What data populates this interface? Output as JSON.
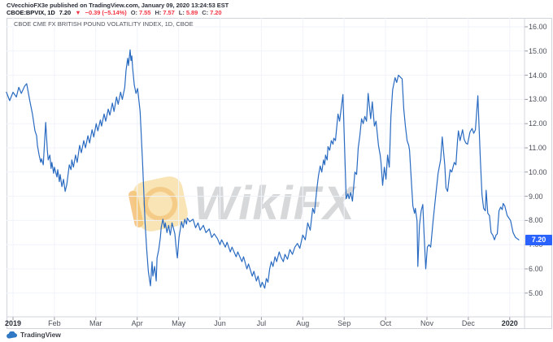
{
  "header": {
    "byline": "CVecchioFX3e published on TradingView.com, January 09, 2020 13:24:53 EST",
    "symbol": "CBOE:BPVIX, 1D",
    "last": "7.20",
    "direction_icon": "▼",
    "change": "−0.39 (−5.14%)",
    "o_label": "O:",
    "o_value": "7.55",
    "h_label": "H:",
    "h_value": "7.57",
    "l_label": "L:",
    "l_value": "5.89",
    "c_label": "C:",
    "c_value": "7.20"
  },
  "chart": {
    "legend_title": "CBOE CME FX BRITISH POUND VOLATILITY INDEX, 1D, CBOE",
    "watermark_text": "WikiFX",
    "price_badge": "7.20",
    "colors": {
      "line": "#2a6bc2",
      "badge_bg": "#2962ff",
      "badge_text": "#ffffff",
      "grid": "#f0f3fa",
      "axis_border": "#d1d4dc",
      "tick_dash": "#9598a1",
      "axis_text": "#4a4e59",
      "red": "#f23645",
      "tv_blue": "#3179c4"
    }
  },
  "attribution": {
    "label": "TradingView"
  },
  "chart_data": {
    "type": "line",
    "title": "CBOE CME FX BRITISH POUND VOLATILITY INDEX, 1D, CBOE",
    "xlabel": "",
    "ylabel": "",
    "grid": true,
    "legend_position": "none",
    "ylim": [
      4.0,
      16.4
    ],
    "last_price": 7.2,
    "y_ticks": [
      16,
      15,
      14,
      13,
      12,
      11,
      10,
      9,
      8,
      7,
      6,
      5
    ],
    "x_ticks": [
      {
        "label": "2019",
        "t": 0,
        "bold": true
      },
      {
        "label": "Feb",
        "t": 1
      },
      {
        "label": "Mar",
        "t": 2
      },
      {
        "label": "Apr",
        "t": 3
      },
      {
        "label": "May",
        "t": 4
      },
      {
        "label": "Jun",
        "t": 5
      },
      {
        "label": "Jul",
        "t": 6
      },
      {
        "label": "Aug",
        "t": 7
      },
      {
        "label": "Sep",
        "t": 8
      },
      {
        "label": "Oct",
        "t": 9
      },
      {
        "label": "Nov",
        "t": 10
      },
      {
        "label": "Dec",
        "t": 11
      },
      {
        "label": "2020",
        "t": 12,
        "bold": true
      }
    ],
    "x_unit": "months since 2019-01-01",
    "points": [
      [
        -0.16,
        13.3
      ],
      [
        -0.08,
        12.95
      ],
      [
        0,
        13.3
      ],
      [
        0.08,
        13.1
      ],
      [
        0.14,
        13.5
      ],
      [
        0.2,
        13.25
      ],
      [
        0.28,
        13.55
      ],
      [
        0.33,
        13.65
      ],
      [
        0.41,
        12.9
      ],
      [
        0.47,
        12.4
      ],
      [
        0.53,
        11.7
      ],
      [
        0.57,
        11.5
      ],
      [
        0.59,
        11.1
      ],
      [
        0.63,
        10.7
      ],
      [
        0.67,
        10.4
      ],
      [
        0.69,
        10.55
      ],
      [
        0.73,
        10.3
      ],
      [
        0.79,
        12.05
      ],
      [
        0.83,
        10.9
      ],
      [
        0.85,
        10.5
      ],
      [
        0.89,
        10.7
      ],
      [
        0.92,
        10.15
      ],
      [
        0.94,
        10.4
      ],
      [
        0.98,
        9.95
      ],
      [
        1.0,
        10.2
      ],
      [
        1.06,
        9.8
      ],
      [
        1.08,
        10.1
      ],
      [
        1.12,
        9.6
      ],
      [
        1.14,
        9.9
      ],
      [
        1.18,
        9.4
      ],
      [
        1.22,
        9.7
      ],
      [
        1.26,
        9.2
      ],
      [
        1.3,
        9.5
      ],
      [
        1.36,
        10.3
      ],
      [
        1.4,
        10.1
      ],
      [
        1.42,
        10.5
      ],
      [
        1.46,
        10.2
      ],
      [
        1.51,
        10.7
      ],
      [
        1.55,
        10.4
      ],
      [
        1.61,
        11.1
      ],
      [
        1.65,
        10.8
      ],
      [
        1.71,
        11.3
      ],
      [
        1.75,
        11.0
      ],
      [
        1.81,
        11.5
      ],
      [
        1.85,
        11.2
      ],
      [
        1.91,
        11.75
      ],
      [
        1.95,
        11.45
      ],
      [
        2.01,
        12.0
      ],
      [
        2.05,
        11.7
      ],
      [
        2.11,
        12.15
      ],
      [
        2.14,
        11.9
      ],
      [
        2.2,
        12.4
      ],
      [
        2.24,
        12.1
      ],
      [
        2.3,
        12.6
      ],
      [
        2.34,
        12.35
      ],
      [
        2.4,
        12.85
      ],
      [
        2.44,
        12.5
      ],
      [
        2.5,
        13.1
      ],
      [
        2.54,
        12.8
      ],
      [
        2.6,
        13.3
      ],
      [
        2.64,
        13.0
      ],
      [
        2.7,
        13.5
      ],
      [
        2.73,
        14.2
      ],
      [
        2.77,
        14.7
      ],
      [
        2.79,
        14.4
      ],
      [
        2.83,
        15.05
      ],
      [
        2.85,
        14.6
      ],
      [
        2.87,
        14.8
      ],
      [
        2.89,
        14.3
      ],
      [
        2.93,
        13.6
      ],
      [
        2.97,
        13.25
      ],
      [
        3.01,
        13.45
      ],
      [
        3.07,
        12.5
      ],
      [
        3.13,
        10.4
      ],
      [
        3.19,
        7.9
      ],
      [
        3.23,
        6.8
      ],
      [
        3.27,
        5.9
      ],
      [
        3.32,
        5.3
      ],
      [
        3.36,
        6.3
      ],
      [
        3.38,
        5.7
      ],
      [
        3.42,
        6.1
      ],
      [
        3.46,
        5.5
      ],
      [
        3.48,
        6.45
      ],
      [
        3.52,
        6.8
      ],
      [
        3.56,
        7.3
      ],
      [
        3.58,
        7.7
      ],
      [
        3.62,
        8.05
      ],
      [
        3.66,
        7.7
      ],
      [
        3.68,
        7.9
      ],
      [
        3.72,
        7.5
      ],
      [
        3.76,
        7.8
      ],
      [
        3.8,
        7.4
      ],
      [
        3.84,
        7.9
      ],
      [
        3.88,
        7.65
      ],
      [
        3.91,
        7.45
      ],
      [
        3.95,
        6.7
      ],
      [
        3.97,
        6.45
      ],
      [
        4.01,
        7.3
      ],
      [
        4.07,
        7.95
      ],
      [
        4.11,
        7.7
      ],
      [
        4.15,
        8.05
      ],
      [
        4.19,
        7.85
      ],
      [
        4.21,
        8.1
      ],
      [
        4.27,
        7.95
      ],
      [
        4.35,
        8.05
      ],
      [
        4.41,
        7.7
      ],
      [
        4.47,
        7.9
      ],
      [
        4.52,
        7.6
      ],
      [
        4.6,
        7.8
      ],
      [
        4.66,
        7.5
      ],
      [
        4.74,
        7.65
      ],
      [
        4.8,
        7.3
      ],
      [
        4.86,
        7.45
      ],
      [
        4.94,
        7.25
      ],
      [
        5.0,
        7.0
      ],
      [
        5.04,
        7.2
      ],
      [
        5.13,
        6.9
      ],
      [
        5.17,
        7.1
      ],
      [
        5.25,
        6.7
      ],
      [
        5.29,
        6.9
      ],
      [
        5.39,
        6.5
      ],
      [
        5.43,
        6.7
      ],
      [
        5.53,
        6.3
      ],
      [
        5.57,
        6.5
      ],
      [
        5.65,
        6.0
      ],
      [
        5.69,
        6.2
      ],
      [
        5.78,
        5.7
      ],
      [
        5.82,
        5.9
      ],
      [
        5.88,
        5.5
      ],
      [
        5.92,
        5.7
      ],
      [
        5.98,
        5.25
      ],
      [
        6.02,
        5.45
      ],
      [
        6.08,
        5.2
      ],
      [
        6.12,
        5.6
      ],
      [
        6.16,
        5.45
      ],
      [
        6.2,
        6.0
      ],
      [
        6.24,
        6.3
      ],
      [
        6.28,
        6.1
      ],
      [
        6.33,
        6.5
      ],
      [
        6.37,
        6.3
      ],
      [
        6.43,
        6.7
      ],
      [
        6.47,
        6.5
      ],
      [
        6.53,
        6.3
      ],
      [
        6.57,
        6.6
      ],
      [
        6.63,
        6.4
      ],
      [
        6.69,
        6.8
      ],
      [
        6.75,
        6.6
      ],
      [
        6.81,
        6.9
      ],
      [
        6.87,
        7.05
      ],
      [
        6.93,
        6.85
      ],
      [
        7.0,
        7.4
      ],
      [
        7.06,
        7.2
      ],
      [
        7.12,
        7.9
      ],
      [
        7.18,
        7.6
      ],
      [
        7.24,
        8.5
      ],
      [
        7.28,
        8.3
      ],
      [
        7.34,
        9.3
      ],
      [
        7.38,
        9.85
      ],
      [
        7.42,
        10.25
      ],
      [
        7.46,
        10.0
      ],
      [
        7.5,
        10.5
      ],
      [
        7.53,
        10.3
      ],
      [
        7.55,
        10.7
      ],
      [
        7.59,
        10.5
      ],
      [
        7.61,
        11.05
      ],
      [
        7.65,
        10.9
      ],
      [
        7.69,
        11.3
      ],
      [
        7.73,
        11.15
      ],
      [
        7.75,
        11.4
      ],
      [
        7.79,
        11.3
      ],
      [
        7.85,
        12.4
      ],
      [
        7.89,
        12.1
      ],
      [
        7.97,
        13.2
      ],
      [
        8.05,
        8.9
      ],
      [
        8.09,
        9.1
      ],
      [
        8.12,
        8.9
      ],
      [
        8.16,
        9.15
      ],
      [
        8.2,
        8.8
      ],
      [
        8.26,
        10.0
      ],
      [
        8.3,
        9.9
      ],
      [
        8.34,
        11.0
      ],
      [
        8.38,
        11.5
      ],
      [
        8.42,
        12.2
      ],
      [
        8.46,
        12.0
      ],
      [
        8.5,
        12.3
      ],
      [
        8.54,
        12.1
      ],
      [
        8.58,
        13.25
      ],
      [
        8.64,
        12.2
      ],
      [
        8.68,
        12.9
      ],
      [
        8.73,
        11.9
      ],
      [
        8.77,
        12.1
      ],
      [
        8.83,
        11.1
      ],
      [
        8.87,
        10.7
      ],
      [
        8.89,
        10.4
      ],
      [
        8.93,
        9.45
      ],
      [
        8.97,
        10.2
      ],
      [
        9.01,
        9.7
      ],
      [
        9.05,
        10.7
      ],
      [
        9.09,
        10.2
      ],
      [
        9.13,
        12.3
      ],
      [
        9.17,
        13.4
      ],
      [
        9.23,
        13.9
      ],
      [
        9.27,
        13.7
      ],
      [
        9.31,
        14.0
      ],
      [
        9.37,
        13.9
      ],
      [
        9.4,
        13.85
      ],
      [
        9.44,
        12.6
      ],
      [
        9.48,
        11.9
      ],
      [
        9.52,
        11.3
      ],
      [
        9.56,
        11.1
      ],
      [
        9.58,
        10.9
      ],
      [
        9.62,
        9.7
      ],
      [
        9.66,
        8.6
      ],
      [
        9.7,
        8.3
      ],
      [
        9.72,
        8.5
      ],
      [
        9.76,
        8.0
      ],
      [
        9.78,
        6.1
      ],
      [
        9.82,
        7.8
      ],
      [
        9.86,
        8.4
      ],
      [
        9.9,
        8.66
      ],
      [
        9.93,
        7.5
      ],
      [
        9.97,
        6.0
      ],
      [
        10.01,
        6.9
      ],
      [
        10.05,
        7.0
      ],
      [
        10.09,
        6.9
      ],
      [
        10.15,
        8.0
      ],
      [
        10.21,
        9.0
      ],
      [
        10.27,
        9.95
      ],
      [
        10.33,
        10.5
      ],
      [
        10.37,
        11.45
      ],
      [
        10.43,
        10.3
      ],
      [
        10.46,
        9.35
      ],
      [
        10.5,
        9.2
      ],
      [
        10.56,
        10.1
      ],
      [
        10.6,
        10.0
      ],
      [
        10.66,
        10.4
      ],
      [
        10.7,
        10.3
      ],
      [
        10.74,
        11.35
      ],
      [
        10.76,
        11.7
      ],
      [
        10.8,
        11.3
      ],
      [
        10.86,
        11.75
      ],
      [
        10.9,
        11.35
      ],
      [
        10.94,
        11.2
      ],
      [
        10.98,
        11.15
      ],
      [
        11.04,
        11.65
      ],
      [
        11.09,
        11.8
      ],
      [
        11.13,
        11.6
      ],
      [
        11.17,
        11.75
      ],
      [
        11.23,
        13.15
      ],
      [
        11.29,
        10.5
      ],
      [
        11.33,
        9.05
      ],
      [
        11.37,
        8.5
      ],
      [
        11.41,
        8.4
      ],
      [
        11.43,
        9.25
      ],
      [
        11.47,
        8.3
      ],
      [
        11.51,
        8.2
      ],
      [
        11.55,
        7.5
      ],
      [
        11.59,
        7.4
      ],
      [
        11.63,
        7.2
      ],
      [
        11.67,
        7.4
      ],
      [
        11.7,
        7.45
      ],
      [
        11.74,
        8.4
      ],
      [
        11.78,
        8.55
      ],
      [
        11.82,
        8.45
      ],
      [
        11.84,
        8.7
      ],
      [
        11.88,
        8.6
      ],
      [
        11.94,
        8.2
      ],
      [
        11.98,
        8.1
      ],
      [
        12.02,
        8.0
      ],
      [
        12.08,
        7.5
      ],
      [
        12.14,
        7.3
      ],
      [
        12.22,
        7.2
      ]
    ]
  }
}
